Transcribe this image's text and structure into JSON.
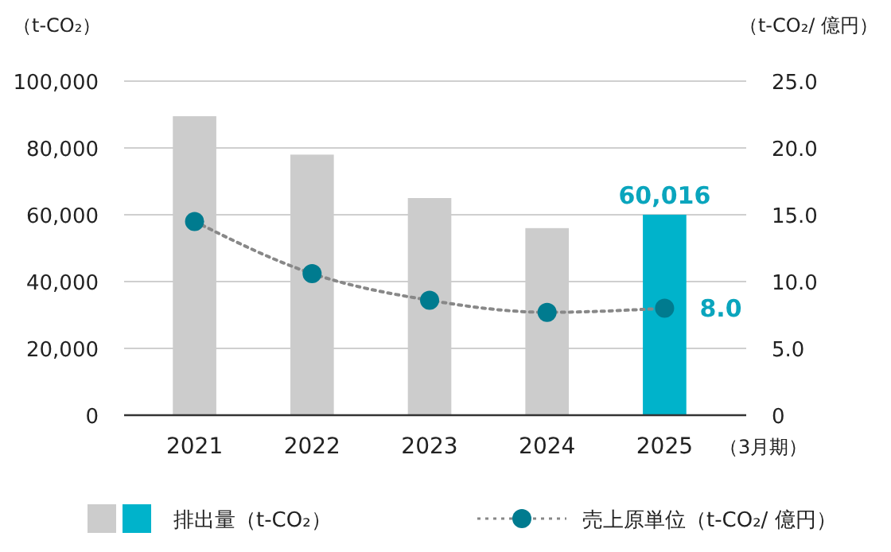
{
  "chart_data": {
    "type": "bar",
    "categories": [
      "2021",
      "2022",
      "2023",
      "2024",
      "2025"
    ],
    "xlabel": "（3月期）",
    "ylabel": "（t-CO₂）",
    "y2label": "（t-CO₂/ 億円）",
    "ylim": [
      0,
      100000
    ],
    "yticks": [
      0,
      {
        "value": 20000,
        "label": "20,000"
      },
      {
        "value": 40000,
        "label": "40,000"
      },
      {
        "value": 60000,
        "label": "60,000"
      },
      {
        "value": 80000,
        "label": "80,000"
      },
      {
        "value": 100000,
        "label": "100,000"
      }
    ],
    "y2lim": [
      0,
      25
    ],
    "y2ticks": [
      0,
      {
        "value": 5,
        "label": "5.0"
      },
      {
        "value": 10,
        "label": "10.0"
      },
      {
        "value": 15,
        "label": "15.0"
      },
      {
        "value": 20,
        "label": "20.0"
      },
      {
        "value": 25,
        "label": "25.0"
      }
    ],
    "grid": "y",
    "legend": "bottom",
    "series": [
      {
        "name": "排出量（t-CO₂）",
        "colors": [
          "#cccccc",
          "#cccccc",
          "#cccccc",
          "#cccccc",
          "#00b3cb"
        ],
        "values": [
          89500,
          78000,
          65000,
          56000,
          60016
        ],
        "value_labels": [
          null,
          null,
          null,
          null,
          "60,016"
        ]
      },
      {
        "name": "売上原単位（t-CO₂/ 億円）",
        "type": "line",
        "axis": "y2",
        "color": "#007b8f",
        "values": [
          14.5,
          10.6,
          8.6,
          7.7,
          8.0
        ],
        "value_labels": [
          null,
          null,
          null,
          null,
          "8.0"
        ],
        "marker": "circle",
        "line_style": "dotted"
      }
    ]
  }
}
